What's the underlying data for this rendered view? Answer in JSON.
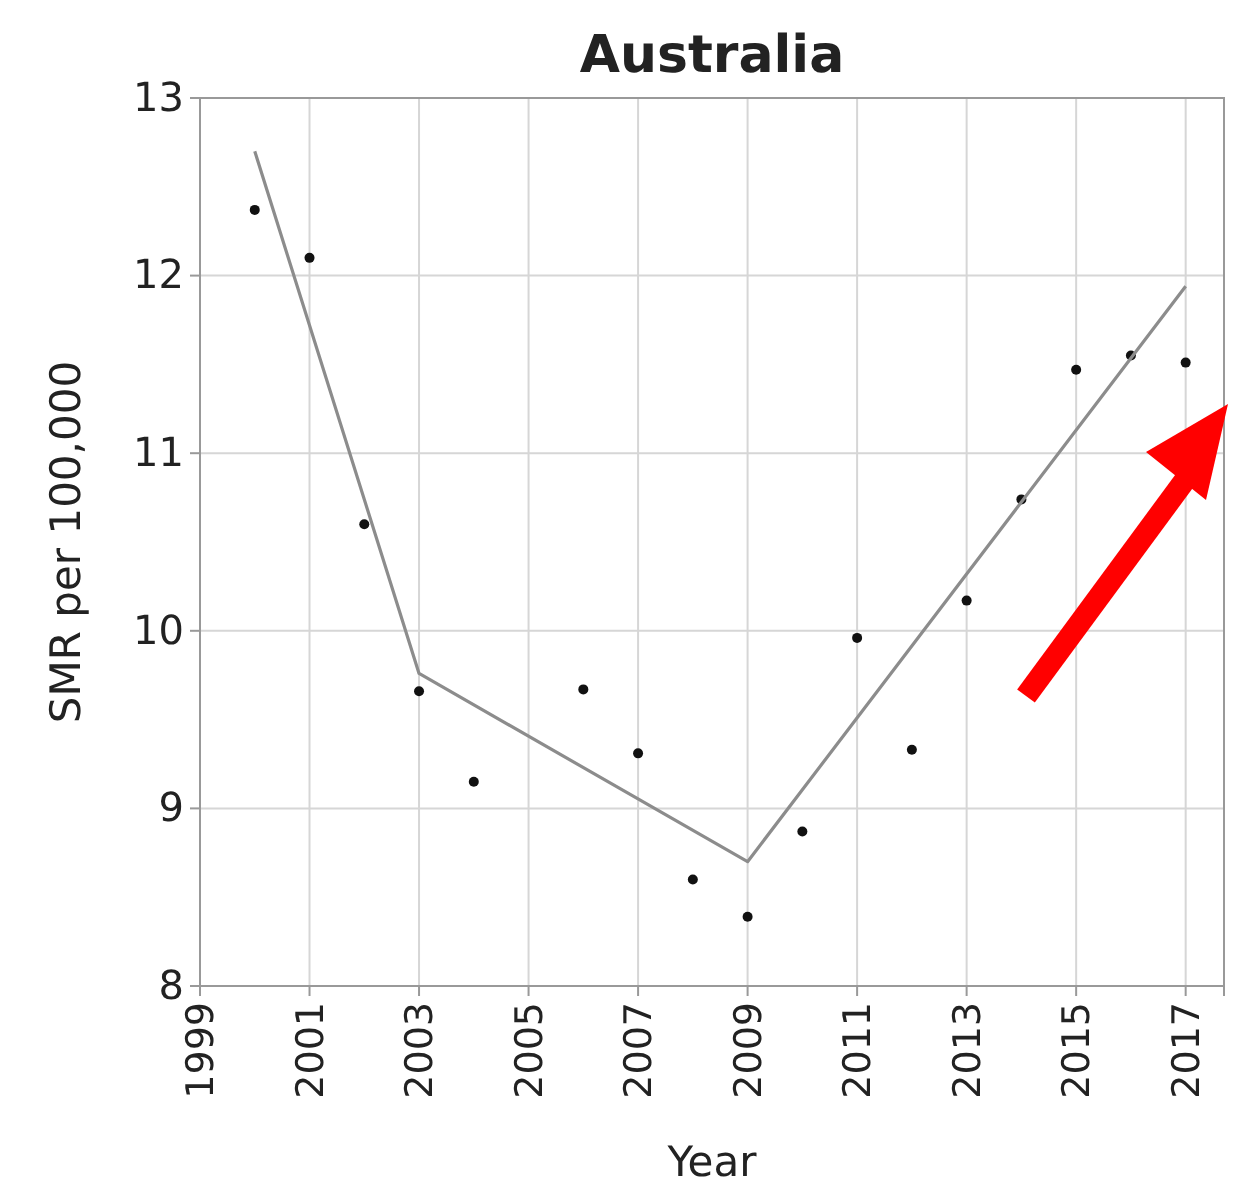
{
  "chart_data": {
    "type": "scatter",
    "title": "Australia",
    "xlabel": "Year",
    "ylabel": "SMR per 100,000",
    "xlim": [
      1999,
      2017.7
    ],
    "xticks": [
      1999,
      2001,
      2003,
      2005,
      2007,
      2009,
      2011,
      2013,
      2015,
      2017
    ],
    "ylim": [
      8,
      13
    ],
    "yticks": [
      8,
      9,
      10,
      11,
      12,
      13
    ],
    "grid": true,
    "marker": "circle",
    "series": [
      {
        "color": "#111111",
        "x": [
          2000,
          2001,
          2002,
          2003,
          2004,
          2006,
          2007,
          2008,
          2009,
          2010,
          2011,
          2012,
          2013,
          2014,
          2015,
          2016,
          2017
        ],
        "values": [
          12.37,
          12.1,
          10.6,
          9.66,
          9.15,
          9.67,
          9.31,
          8.6,
          8.39,
          8.87,
          9.96,
          9.33,
          10.17,
          10.74,
          11.47,
          11.55,
          11.51
        ]
      },
      {
        "type": "line",
        "color": "#8c8c8c",
        "marker": "none",
        "x": [
          2000,
          2003,
          2009,
          2017
        ],
        "values": [
          12.7,
          9.76,
          8.7,
          11.94
        ]
      }
    ]
  }
}
